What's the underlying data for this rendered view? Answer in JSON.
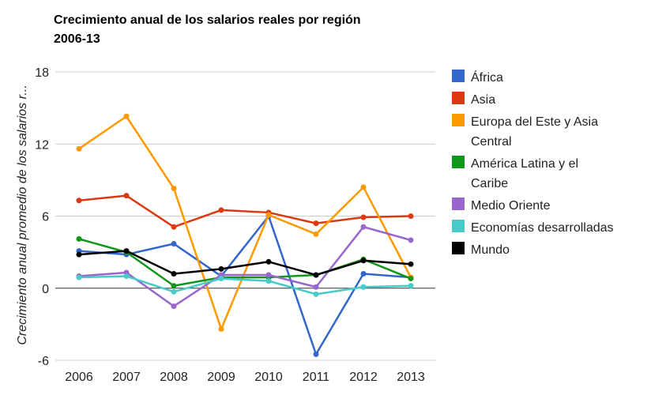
{
  "chart_data": {
    "type": "line",
    "title_line1": "Crecimiento anual de los salarios reales por región",
    "title_line2": "2006-13",
    "xlabel": "",
    "ylabel": "Crecimiento anual promedio de los salarios r...",
    "x": [
      "2006",
      "2007",
      "2008",
      "2009",
      "2010",
      "2011",
      "2012",
      "2013"
    ],
    "ylim": [
      -6,
      18
    ],
    "yticks": [
      18,
      12,
      6,
      0,
      -6
    ],
    "grid": true,
    "legend": "right",
    "series": [
      {
        "name": "África",
        "legend_lines": [
          "África"
        ],
        "color": "#3366cc",
        "values": [
          3.1,
          2.8,
          3.7,
          1.0,
          6.0,
          -5.5,
          1.2,
          0.9
        ]
      },
      {
        "name": "Asia",
        "legend_lines": [
          "Asia"
        ],
        "color": "#dc3912",
        "values": [
          7.3,
          7.7,
          5.1,
          6.5,
          6.3,
          5.4,
          5.9,
          6.0
        ]
      },
      {
        "name": "Europa del Este y Asia Central",
        "legend_lines": [
          "Europa del Este y Asia",
          "Central"
        ],
        "color": "#ff9900",
        "values": [
          11.6,
          14.3,
          8.3,
          -3.4,
          6.1,
          4.5,
          8.4,
          0.9
        ]
      },
      {
        "name": "América Latina y el Caribe",
        "legend_lines": [
          "América Latina y el",
          "Caribe"
        ],
        "color": "#109618",
        "values": [
          4.1,
          3.0,
          0.2,
          0.9,
          0.9,
          1.1,
          2.4,
          0.8
        ]
      },
      {
        "name": "Medio Oriente",
        "legend_lines": [
          "Medio Oriente"
        ],
        "color": "#9966cc",
        "values": [
          1.0,
          1.3,
          -1.5,
          1.1,
          1.1,
          0.1,
          5.1,
          4.0
        ]
      },
      {
        "name": "Economías desarrolladas",
        "legend_lines": [
          "Economías desarrolladas"
        ],
        "color": "#46cbc9",
        "values": [
          0.9,
          1.0,
          -0.3,
          0.8,
          0.6,
          -0.5,
          0.1,
          0.2
        ]
      },
      {
        "name": "Mundo",
        "legend_lines": [
          "Mundo"
        ],
        "color": "#000000",
        "values": [
          2.8,
          3.1,
          1.2,
          1.6,
          2.2,
          1.1,
          2.3,
          2.0
        ]
      }
    ]
  }
}
